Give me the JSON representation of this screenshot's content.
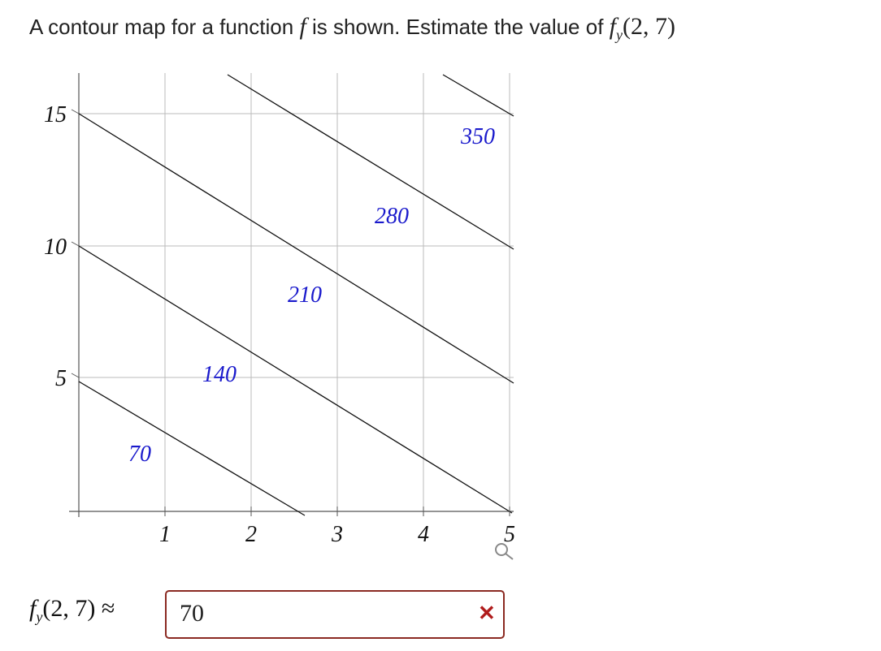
{
  "question": {
    "text": "A contour map for a function",
    "function": "f",
    "text2": "is shown. Estimate the value of",
    "expression": {
      "function": "f",
      "subscript": "y",
      "args": "(2, 7)"
    }
  },
  "plot": {
    "x_tick_labels": [
      "1",
      "2",
      "3",
      "4",
      "5"
    ],
    "y_tick_labels": [
      "5",
      "10",
      "15"
    ],
    "contour_labels": [
      "70",
      "140",
      "210",
      "280",
      "350"
    ]
  },
  "answer": {
    "label": {
      "function": "f",
      "subscript": "y",
      "args": "(2, 7)",
      "relation": "≈"
    },
    "input_value": "70"
  }
}
